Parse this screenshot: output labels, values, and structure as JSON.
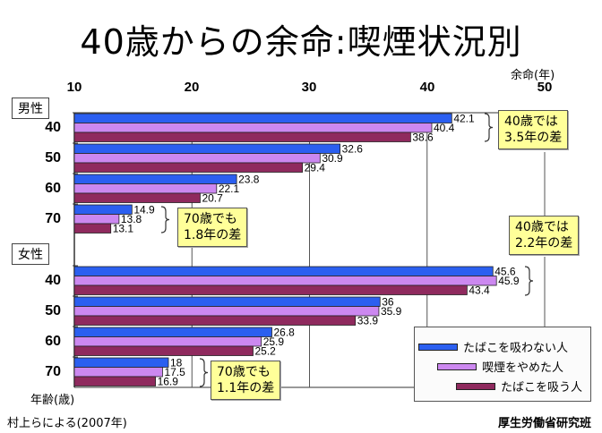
{
  "chart_data": {
    "type": "bar",
    "orientation": "horizontal",
    "title": "40歳からの余命:喫煙状況別",
    "xlabel": "余命(年)",
    "ylabel": "年齢(歳)",
    "xlim": [
      10,
      50
    ],
    "xticks": [
      "10",
      "20",
      "30",
      "40",
      "50"
    ],
    "grid": true,
    "legend_position": "bottom-right",
    "series": [
      {
        "name": "たばこを吸わない人",
        "color": "#2b5ff0"
      },
      {
        "name": "喫煙をやめた人",
        "color": "#cc88f0"
      },
      {
        "name": "たばこを吸う人",
        "color": "#8f2a5e"
      }
    ],
    "groups": [
      {
        "sex": "男性",
        "rows": [
          {
            "age": "40",
            "values": [
              42.1,
              40.4,
              38.6
            ],
            "labels": [
              "42.1",
              "40.4",
              "38.6"
            ]
          },
          {
            "age": "50",
            "values": [
              32.6,
              30.9,
              29.4
            ],
            "labels": [
              "32.6",
              "30.9",
              "29.4"
            ]
          },
          {
            "age": "60",
            "values": [
              23.8,
              22.1,
              20.7
            ],
            "labels": [
              "23.8",
              "22.1",
              "20.7"
            ]
          },
          {
            "age": "70",
            "values": [
              14.9,
              13.8,
              13.1
            ],
            "labels": [
              "14.9",
              "13.8",
              "13.1"
            ]
          }
        ]
      },
      {
        "sex": "女性",
        "rows": [
          {
            "age": "40",
            "values": [
              45.6,
              45.9,
              43.4
            ],
            "labels": [
              "45.6",
              "45.9",
              "43.4"
            ]
          },
          {
            "age": "50",
            "values": [
              36.0,
              35.9,
              33.9
            ],
            "labels": [
              "36",
              "35.9",
              "33.9"
            ]
          },
          {
            "age": "60",
            "values": [
              26.8,
              25.9,
              25.2
            ],
            "labels": [
              "26.8",
              "25.9",
              "25.2"
            ]
          },
          {
            "age": "70",
            "values": [
              18.0,
              17.5,
              16.9
            ],
            "labels": [
              "18",
              "17.5",
              "16.9"
            ]
          }
        ]
      }
    ],
    "annotations": [
      {
        "id": "male40",
        "line1": "40歳では",
        "line2": "3.5年の差"
      },
      {
        "id": "male70",
        "line1": "70歳でも",
        "line2": "1.8年の差"
      },
      {
        "id": "female40",
        "line1": "40歳では",
        "line2": "2.2年の差"
      },
      {
        "id": "female70",
        "line1": "70歳でも",
        "line2": "1.1年の差"
      }
    ],
    "source": "村上らによる(2007年)",
    "credit": "厚生労働省研究班"
  }
}
